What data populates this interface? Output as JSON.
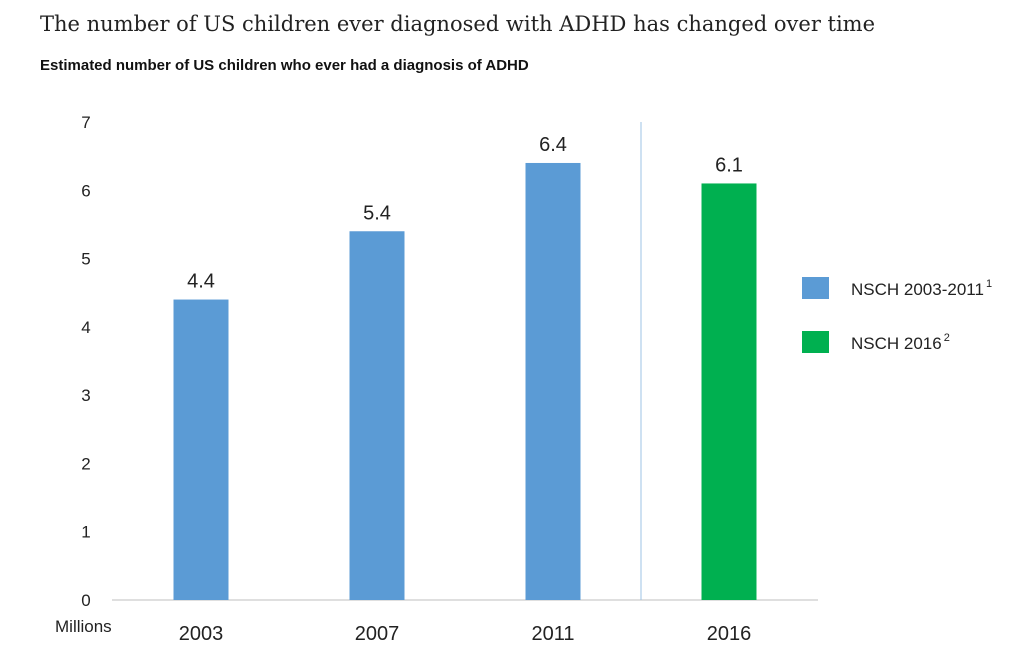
{
  "header": {
    "title": "The number of US children ever diagnosed with ADHD has changed over time",
    "subtitle": "Estimated number of US children who ever had a diagnosis of ADHD"
  },
  "chart_data": {
    "type": "bar",
    "title": "The number of US children ever diagnosed with ADHD has changed over time",
    "subtitle": "Estimated number of US children who ever had a diagnosis of ADHD",
    "categories": [
      "2003",
      "2007",
      "2011",
      "2016"
    ],
    "values": [
      4.4,
      5.4,
      6.4,
      6.1
    ],
    "data_labels": [
      "4.4",
      "5.4",
      "6.4",
      "6.1"
    ],
    "bar_series": [
      "NSCH 2003-2011",
      "NSCH 2003-2011",
      "NSCH 2003-2011",
      "NSCH 2016"
    ],
    "series": [
      {
        "name": "NSCH 2003-2011",
        "superscript": "1",
        "color": "#5b9bd5",
        "values": [
          4.4,
          5.4,
          6.4,
          null
        ]
      },
      {
        "name": "NSCH 2016",
        "superscript": "2",
        "color": "#00b050",
        "values": [
          null,
          null,
          null,
          6.1
        ]
      }
    ],
    "ylabel": "Millions",
    "xlabel": "",
    "ylim": [
      0,
      7
    ],
    "yticks": [
      0,
      1,
      2,
      3,
      4,
      5,
      6,
      7
    ],
    "grid": false,
    "legend_position": "right",
    "separator_between": [
      "2011",
      "2016"
    ]
  }
}
